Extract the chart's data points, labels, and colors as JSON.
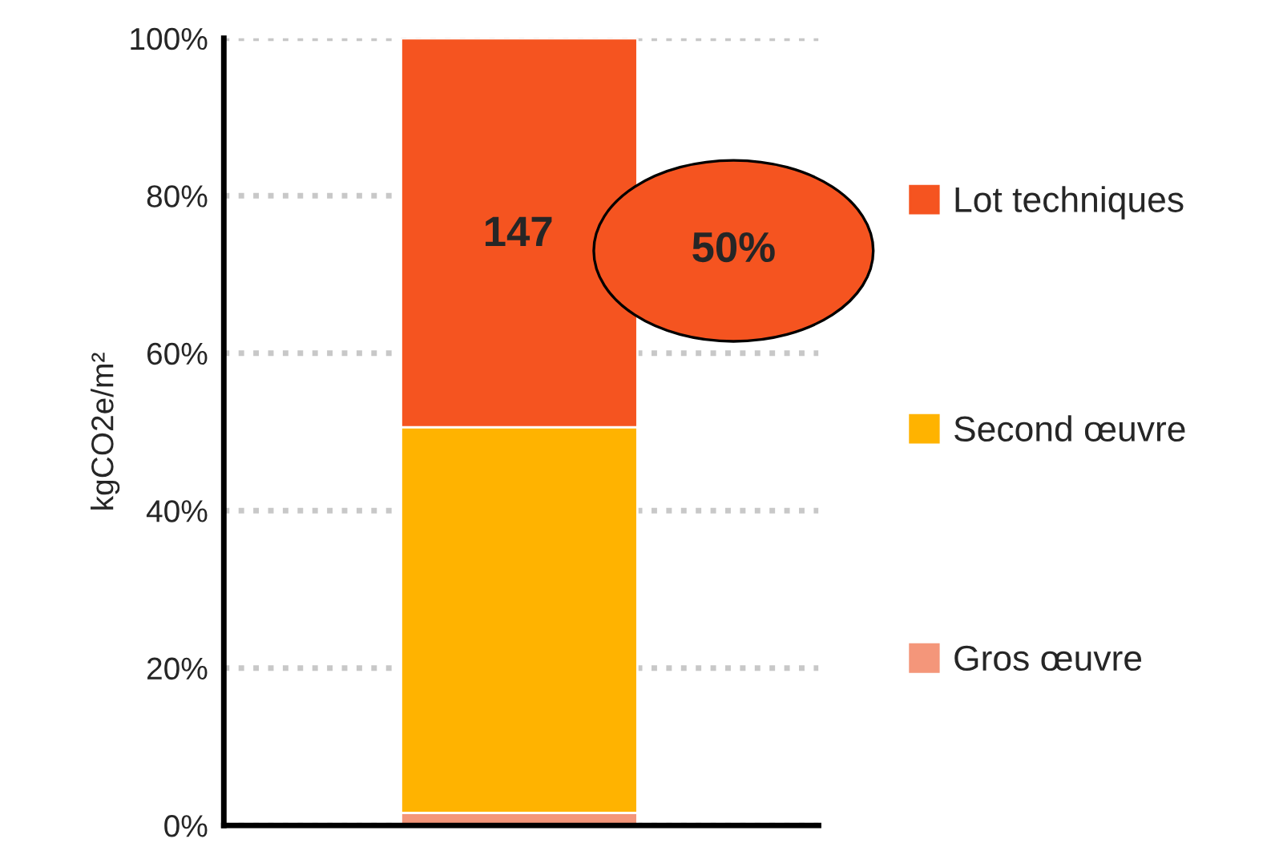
{
  "chart_data": {
    "type": "bar",
    "stacked": true,
    "ylabel": "kgCO2e/m²",
    "categories": [
      null
    ],
    "series": [
      {
        "name": "Gros œuvre",
        "color": "#f4967a",
        "values": [
          1.6
        ]
      },
      {
        "name": "Second œuvre",
        "color": "#ffb300",
        "values": [
          49.0
        ]
      },
      {
        "name": "Lot techniques",
        "color": "#f55420",
        "values": [
          49.4
        ]
      }
    ],
    "annotations": [
      "147",
      "50%"
    ],
    "ylim": [
      0,
      100
    ],
    "yticks": [
      {
        "value": 0,
        "label": "0%"
      },
      {
        "value": 20,
        "label": "20%"
      },
      {
        "value": 40,
        "label": "40%"
      },
      {
        "value": 60,
        "label": "60%"
      },
      {
        "value": 80,
        "label": "80%"
      },
      {
        "value": 100,
        "label": "100%"
      }
    ],
    "grid": "y",
    "legend": "right",
    "tick_labels": "y"
  }
}
